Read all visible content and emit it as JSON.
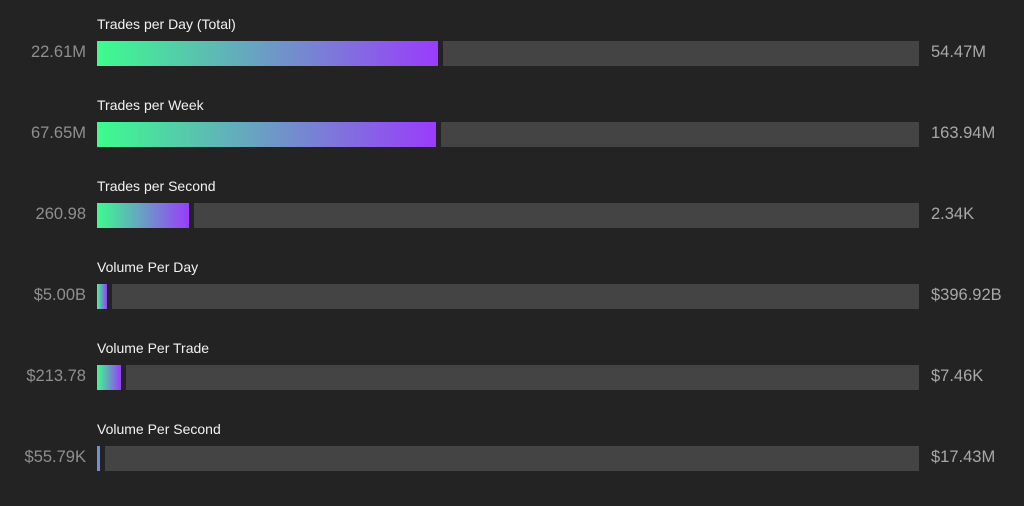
{
  "chart_data": {
    "type": "bar",
    "orientation": "horizontal",
    "gradient_colors": [
      "#3dfc8e",
      "#9a3cfc"
    ],
    "track_color": "#444444",
    "bars": [
      {
        "label": "Trades per Day (Total)",
        "value": 22610000.0,
        "value_text": "22.61M",
        "max": 54470000.0,
        "max_text": "54.47M"
      },
      {
        "label": "Trades per Week",
        "value": 67650000.0,
        "value_text": "67.65M",
        "max": 163940000.0,
        "max_text": "163.94M"
      },
      {
        "label": "Trades per Second",
        "value": 260.98,
        "value_text": "260.98",
        "max": 2340,
        "max_text": "2.34K"
      },
      {
        "label": "Volume Per Day",
        "value": 5000000000.0,
        "value_text": "$5.00B",
        "max": 396920000000.0,
        "max_text": "$396.92B"
      },
      {
        "label": "Volume Per Trade",
        "value": 213.78,
        "value_text": "$213.78",
        "max": 7460,
        "max_text": "$7.46K"
      },
      {
        "label": "Volume Per Second",
        "value": 55790,
        "value_text": "$55.79K",
        "max": 17430000.0,
        "max_text": "$17.43M"
      }
    ]
  }
}
